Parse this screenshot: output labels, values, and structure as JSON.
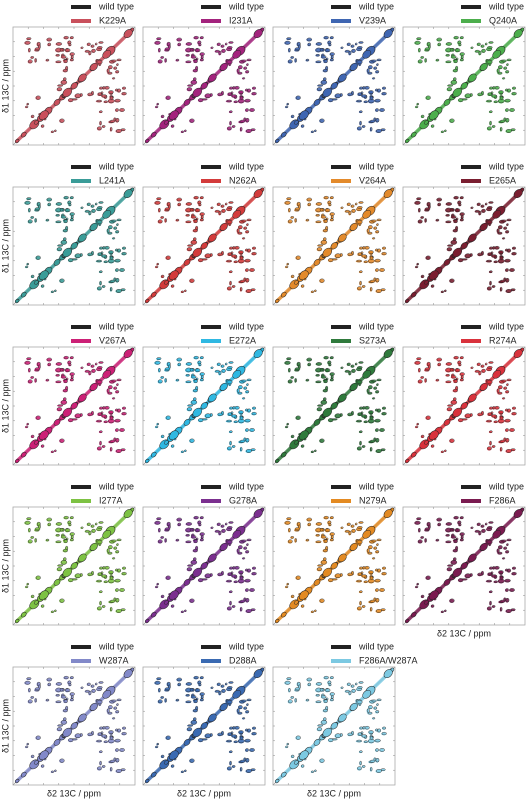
{
  "figure": {
    "wild_type_label": "wild type",
    "y_label": "δ1 13C / ppm",
    "x_label": "δ2 13C / ppm",
    "panels": [
      {
        "name": "K229A",
        "color": "#c9505c"
      },
      {
        "name": "I231A",
        "color": "#a3237d"
      },
      {
        "name": "V239A",
        "color": "#3f66b2"
      },
      {
        "name": "Q240A",
        "color": "#4cae4c"
      },
      {
        "name": "L241A",
        "color": "#3a9c98"
      },
      {
        "name": "N262A",
        "color": "#d33b3b"
      },
      {
        "name": "V264A",
        "color": "#e38a2b"
      },
      {
        "name": "E265A",
        "color": "#7a1e30"
      },
      {
        "name": "V267A",
        "color": "#cc2076"
      },
      {
        "name": "E272A",
        "color": "#2fb8e2"
      },
      {
        "name": "S273A",
        "color": "#2f7a3c"
      },
      {
        "name": "R274A",
        "color": "#d9323c"
      },
      {
        "name": "I277A",
        "color": "#7dc243"
      },
      {
        "name": "G278A",
        "color": "#7b2f8f"
      },
      {
        "name": "N279A",
        "color": "#e38a22"
      },
      {
        "name": "F286A",
        "color": "#7a1b50"
      },
      {
        "name": "W287A",
        "color": "#8289c9"
      },
      {
        "name": "D288A",
        "color": "#3a6ab2"
      },
      {
        "name": "F286A/W287A",
        "color": "#7cc9e2"
      }
    ]
  }
}
